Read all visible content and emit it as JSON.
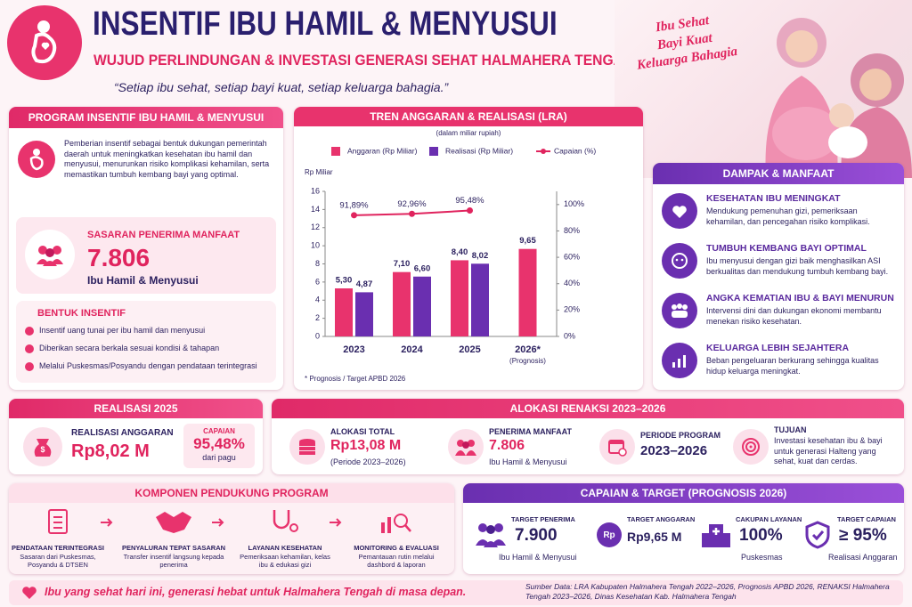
{
  "header": {
    "title": "INSENTIF IBU HAMIL & MENYUSUI",
    "subtitle": "WUJUD PERLINDUNGAN & INVESTASI GENERASI SEHAT HALMAHERA TENGAH",
    "quote": "“Setiap ibu sehat, setiap bayi kuat, setiap keluarga bahagia.”",
    "tagline": [
      "Ibu Sehat",
      "Bayi Kuat",
      "Keluarga Bahagia"
    ]
  },
  "program": {
    "title": "PROGRAM INSENTIF IBU HAMIL & MENYUSUI",
    "description": "Pemberian insentif sebagai bentuk dukungan pemerintah daerah untuk meningkatkan kesehatan ibu hamil dan menyusui, menurunkan risiko komplikasi kehamilan, serta memastikan tumbuh kembang bayi yang optimal.",
    "target_label": "SASARAN PENERIMA MANFAAT",
    "target_value": "7.806",
    "target_unit": "Ibu Hamil & Menyusui",
    "forms_title": "BENTUK INSENTIF",
    "forms": [
      "Insentif uang tunai per ibu hamil dan menyusui",
      "Diberikan secara berkala sesuai kondisi & tahapan",
      "Melalui Puskesmas/Posyandu dengan pendataan terintegrasi"
    ]
  },
  "chart_data": {
    "type": "bar",
    "title": "TREN ANGGARAN & REALISASI (LRA)",
    "subtitle": "(dalam miliar rupiah)",
    "y_label": "Rp Miliar",
    "categories": [
      "2023",
      "2024",
      "2025",
      "2026*"
    ],
    "category_note": "(Prognosis)",
    "note": "* Prognosis / Target APBD 2026",
    "series": [
      {
        "name": "Anggaran (Rp Miliar)",
        "color": "#e8336d",
        "values": [
          5.3,
          7.1,
          8.4,
          9.65
        ],
        "value_labels": [
          "5,30",
          "7,10",
          "8,40",
          "9,65"
        ]
      },
      {
        "name": "Realisasi (Rp Miliar)",
        "color": "#6a2fb0",
        "values": [
          4.87,
          6.6,
          8.02,
          null
        ],
        "value_labels": [
          "4,87",
          "6,60",
          "8,02",
          null
        ]
      },
      {
        "name": "Capaian (%)",
        "type": "line",
        "axis": "y2",
        "color": "#e0245e",
        "values": [
          91.89,
          92.96,
          95.48,
          null
        ],
        "value_labels": [
          "91,89%",
          "92,96%",
          "95,48%",
          null
        ]
      }
    ],
    "ylim": [
      0,
      16
    ],
    "yticks": [
      0,
      2,
      4,
      6,
      8,
      10,
      12,
      14,
      16
    ],
    "y2lim": [
      0,
      110
    ],
    "y2ticks": [
      {
        "value": 0,
        "label": "0%"
      },
      {
        "value": 20,
        "label": "20%"
      },
      {
        "value": 40,
        "label": "40%"
      },
      {
        "value": 60,
        "label": "60%"
      },
      {
        "value": 80,
        "label": "80%"
      },
      {
        "value": 100,
        "label": "100%"
      }
    ],
    "grid": false
  },
  "impact": {
    "title": "DAMPAK & MANFAAT",
    "items": [
      {
        "title": "KESEHATAN IBU MENINGKAT",
        "text": "Mendukung pemenuhan gizi, pemeriksaan kehamilan, dan pencegahan risiko komplikasi."
      },
      {
        "title": "TUMBUH KEMBANG BAYI OPTIMAL",
        "text": "Ibu menyusui dengan gizi baik menghasilkan ASI berkualitas dan mendukung tumbuh kembang bayi."
      },
      {
        "title": "ANGKA KEMATIAN IBU & BAYI MENURUN",
        "text": "Intervensi dini dan dukungan ekonomi membantu menekan risiko kesehatan."
      },
      {
        "title": "KELUARGA LEBIH SEJAHTERA",
        "text": "Beban pengeluaran berkurang sehingga kualitas hidup keluarga meningkat."
      }
    ]
  },
  "realization": {
    "title": "REALISASI 2025",
    "label": "REALISASI ANGGARAN",
    "value": "Rp8,02 M",
    "achievement_label": "CAPAIAN",
    "achievement_value": "95,48%",
    "achievement_note": "dari pagu"
  },
  "allocation": {
    "title": "ALOKASI RENAKSI 2023–2026",
    "items": [
      {
        "label": "ALOKASI TOTAL",
        "value": "Rp13,08 M",
        "note": "(Periode 2023–2026)"
      },
      {
        "label": "PENERIMA MANFAAT",
        "value": "7.806",
        "note": "Ibu Hamil & Menyusui"
      },
      {
        "label": "PERIODE PROGRAM",
        "value": "2023–2026"
      }
    ],
    "goal_label": "TUJUAN",
    "goal_text": "Investasi kesehatan ibu & bayi untuk generasi Halteng yang sehat, kuat dan cerdas."
  },
  "components": {
    "title": "KOMPONEN PENDUKUNG PROGRAM",
    "steps": [
      {
        "title": "PENDATAAN TERINTEGRASI",
        "text": "Sasaran dari Puskesmas, Posyandu & DTSEN"
      },
      {
        "title": "PENYALURAN TEPAT SASARAN",
        "text": "Transfer insentif langsung kepada penerima"
      },
      {
        "title": "LAYANAN KESEHATAN",
        "text": "Pemeriksaan kehamilan, kelas ibu & edukasi gizi"
      },
      {
        "title": "MONITORING & EVALUASI",
        "text": "Pemantauan rutin melalui dashbord & laporan"
      }
    ]
  },
  "targets": {
    "title": "CAPAIAN & TARGET (PROGNOSIS 2026)",
    "items": [
      {
        "label": "TARGET PENERIMA",
        "value": "7.900",
        "note": "Ibu Hamil & Menyusui"
      },
      {
        "label": "TARGET ANGGARAN",
        "value": "Rp9,65 M",
        "icon": "Rp"
      },
      {
        "label": "CAKUPAN LAYANAN",
        "value": "100%",
        "note": "Puskesmas"
      },
      {
        "label": "TARGET CAPAIAN",
        "value": "≥ 95%",
        "note": "Realisasi Anggaran"
      }
    ]
  },
  "footer": {
    "slogan": "Ibu yang sehat hari ini, generasi hebat untuk Halmahera Tengah di masa depan.",
    "source": "Sumber Data: LRA Kabupaten Halmahera Tengah 2022–2026, Prognosis APBD 2026, RENAKSI Halmahera Tengah 2023–2026, Dinas Kesehatan Kab. Halmahera Tengah"
  }
}
